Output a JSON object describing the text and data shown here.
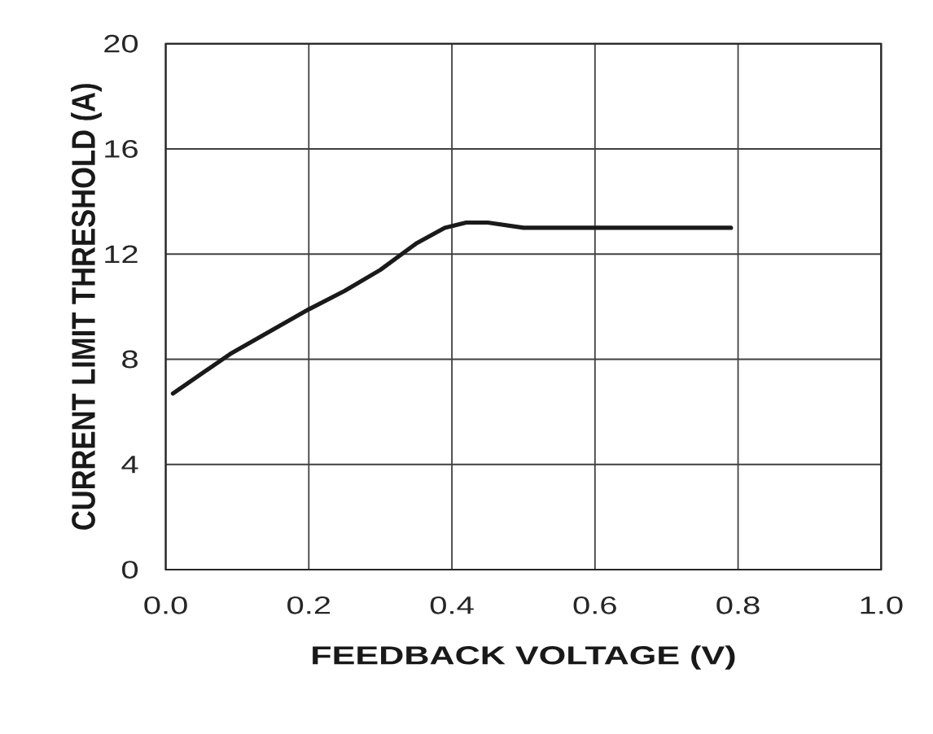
{
  "chart_data": {
    "type": "line",
    "xlabel": "FEEDBACK VOLTAGE (V)",
    "ylabel": "CURRENT LIMIT THRESHOLD (A)",
    "x": [
      0.01,
      0.09,
      0.2,
      0.25,
      0.3,
      0.35,
      0.39,
      0.42,
      0.45,
      0.5,
      0.6,
      0.7,
      0.79
    ],
    "series": [
      {
        "color": "#1a1a1a",
        "values": [
          6.7,
          8.2,
          9.9,
          10.6,
          11.4,
          12.4,
          13.0,
          13.2,
          13.2,
          13.0,
          13.0,
          13.0,
          13.0
        ]
      }
    ],
    "xlim": [
      0,
      1
    ],
    "ylim": [
      0,
      20
    ],
    "xticks": [
      {
        "value": 0,
        "label": "0.0"
      },
      0.2,
      0.4,
      0.6,
      0.8,
      {
        "value": 1,
        "label": "1.0"
      }
    ],
    "yticks": [
      0,
      4,
      8,
      12,
      16,
      20
    ],
    "grid": true
  }
}
